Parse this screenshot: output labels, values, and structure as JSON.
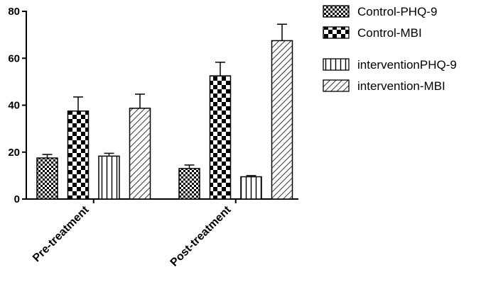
{
  "chart_data": {
    "type": "bar",
    "categories": [
      "Pre-treatment",
      "Post-treatment"
    ],
    "series": [
      {
        "name": "Control-PHQ-9",
        "values": [
          17.5,
          13.0
        ],
        "errors": [
          1.5,
          1.5
        ],
        "pattern": "fine-checker"
      },
      {
        "name": "Control-MBI",
        "values": [
          37.5,
          52.5
        ],
        "errors": [
          6.0,
          5.8
        ],
        "pattern": "coarse-checker"
      },
      {
        "name": "interventionPHQ-9",
        "values": [
          18.3,
          9.5
        ],
        "errors": [
          1.2,
          0.5
        ],
        "pattern": "vertical-lines"
      },
      {
        "name": "intervention-MBI",
        "values": [
          38.7,
          67.5
        ],
        "errors": [
          6.0,
          7.0
        ],
        "pattern": "diagonal-lines"
      }
    ],
    "yticks": [
      0,
      20,
      40,
      60,
      80
    ],
    "ylim": [
      0,
      80
    ],
    "xlabel": "",
    "ylabel": "",
    "grid": false,
    "legend_position": "top-right"
  }
}
